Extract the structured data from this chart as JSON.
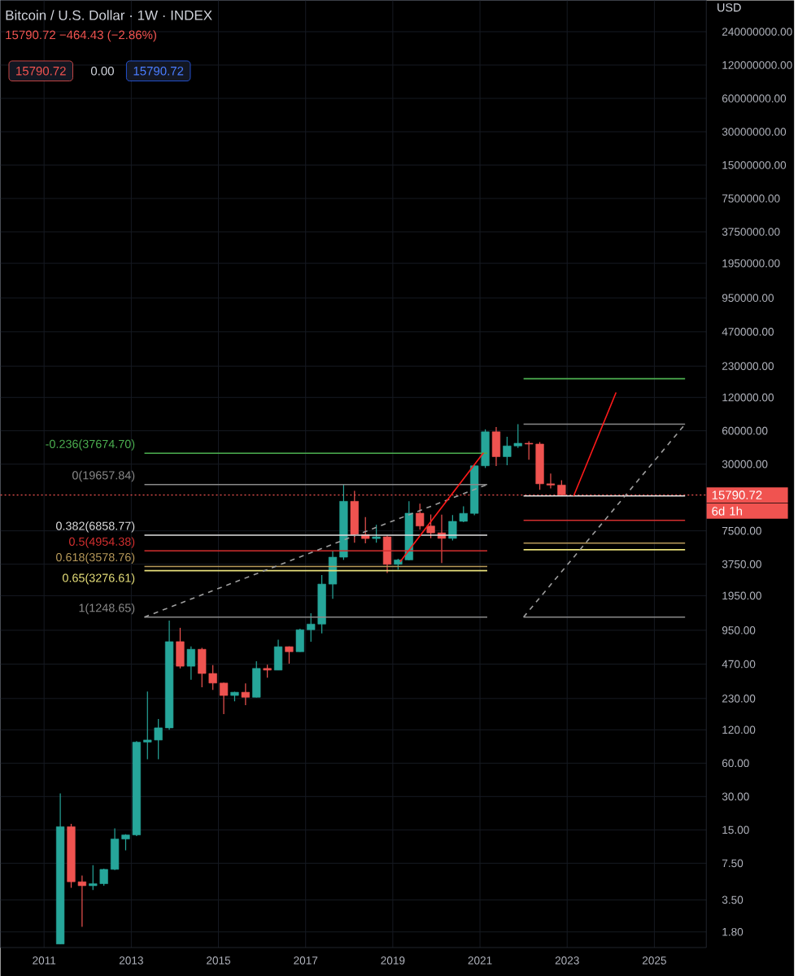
{
  "chart_data": {
    "type": "candlestick",
    "title": "Bitcoin / U.S. Dollar · 1W · INDEX",
    "subtitle": "15790.72 −464.43 (−2.86%)",
    "ylabel": "USD",
    "annotations": [
      "15790.72",
      "0.00",
      "15790.72",
      "6d 1h"
    ],
    "log": "y",
    "grid": true,
    "xlim": [
      "2010-01-01",
      "2026-03-10"
    ],
    "xticks": [
      {
        "value": "2011-01-01",
        "label": "2011"
      },
      {
        "value": "2013-01-01",
        "label": "2013"
      },
      {
        "value": "2015-01-01",
        "label": "2015"
      },
      {
        "value": "2017-01-01",
        "label": "2017"
      },
      {
        "value": "2019-01-01",
        "label": "2019"
      },
      {
        "value": "2021-01-01",
        "label": "2021"
      },
      {
        "value": "2023-01-01",
        "label": "2023"
      },
      {
        "value": "2025-01-01",
        "label": "2025"
      }
    ],
    "ylim": [
      1.3,
      460000000
    ],
    "yticks": [
      {
        "value": 1.8,
        "label": "1.80"
      },
      {
        "value": 3.5,
        "label": "3.50"
      },
      {
        "value": 7.5,
        "label": "7.50"
      },
      {
        "value": 15,
        "label": "15.00"
      },
      {
        "value": 30,
        "label": "30.00"
      },
      {
        "value": 60,
        "label": "60.00"
      },
      {
        "value": 120,
        "label": "120.00"
      },
      {
        "value": 230,
        "label": "230.00"
      },
      {
        "value": 470,
        "label": "470.00"
      },
      {
        "value": 950,
        "label": "950.00"
      },
      {
        "value": 1950,
        "label": "1950.00"
      },
      {
        "value": 3750,
        "label": "3750.00"
      },
      {
        "value": 7500,
        "label": "7500.00"
      },
      {
        "value": 30000,
        "label": "30000.00"
      },
      {
        "value": 60000,
        "label": "60000.00"
      },
      {
        "value": 120000,
        "label": "120000.00"
      },
      {
        "value": 230000,
        "label": "230000.00"
      },
      {
        "value": 470000,
        "label": "470000.00"
      },
      {
        "value": 950000,
        "label": "950000.00"
      },
      {
        "value": 1950000,
        "label": "1950000.00"
      },
      {
        "value": 3750000,
        "label": "3750000.00"
      },
      {
        "value": 7500000,
        "label": "7500000.00"
      },
      {
        "value": 15000000,
        "label": "15000000.00"
      },
      {
        "value": 30000000,
        "label": "30000000.00"
      },
      {
        "value": 60000000,
        "label": "60000000.00"
      },
      {
        "value": 120000000,
        "label": "120000000.00"
      },
      {
        "value": 240000000,
        "label": "240000000.00"
      }
    ],
    "ref_lines": [
      {
        "axis": "y",
        "value": 15790.72,
        "label": "15790.72",
        "color": "#f05350",
        "line_style": "dotted"
      }
    ],
    "x": [
      "2011-05-15",
      "2011-08-15",
      "2011-11-15",
      "2012-02-15",
      "2012-05-15",
      "2012-08-15",
      "2012-11-15",
      "2013-02-15",
      "2013-05-15",
      "2013-08-15",
      "2013-11-15",
      "2014-02-15",
      "2014-05-15",
      "2014-08-15",
      "2014-11-15",
      "2015-02-15",
      "2015-05-15",
      "2015-08-15",
      "2015-11-15",
      "2016-02-15",
      "2016-05-15",
      "2016-08-15",
      "2016-11-15",
      "2017-02-15",
      "2017-05-15",
      "2017-08-15",
      "2017-11-15",
      "2018-02-15",
      "2018-05-15",
      "2018-08-15",
      "2018-11-15",
      "2019-02-15",
      "2019-05-15",
      "2019-08-15",
      "2019-11-15",
      "2020-02-15",
      "2020-05-15",
      "2020-08-15",
      "2020-11-15",
      "2021-02-15",
      "2021-05-15",
      "2021-08-15",
      "2021-11-15",
      "2022-02-15",
      "2022-05-15",
      "2022-08-15",
      "2022-11-15"
    ],
    "ohlc": [
      [
        1.4,
        32,
        1.4,
        16
      ],
      [
        16,
        17,
        4.5,
        5.1
      ],
      [
        5.1,
        5.8,
        2.0,
        4.7
      ],
      [
        4.7,
        7.2,
        4.3,
        4.9
      ],
      [
        4.9,
        6.7,
        4.7,
        6.6
      ],
      [
        6.6,
        15.5,
        6.5,
        12.4
      ],
      [
        12.4,
        13.7,
        9.8,
        13.5
      ],
      [
        13.5,
        95,
        13.2,
        93
      ],
      [
        93,
        266,
        65,
        97
      ],
      [
        97,
        150,
        65,
        125
      ],
      [
        125,
        1160,
        120,
        750
      ],
      [
        750,
        1000,
        430,
        450
      ],
      [
        450,
        680,
        340,
        640
      ],
      [
        640,
        660,
        290,
        387
      ],
      [
        387,
        460,
        275,
        317
      ],
      [
        317,
        320,
        166,
        245
      ],
      [
        245,
        265,
        217,
        262
      ],
      [
        262,
        315,
        200,
        236
      ],
      [
        236,
        500,
        235,
        430
      ],
      [
        430,
        465,
        355,
        415
      ],
      [
        415,
        780,
        415,
        675
      ],
      [
        675,
        680,
        475,
        608
      ],
      [
        608,
        980,
        605,
        960
      ],
      [
        960,
        1350,
        750,
        1080
      ],
      [
        1080,
        3000,
        890,
        2480
      ],
      [
        2480,
        4950,
        1830,
        4340
      ],
      [
        4340,
        19670,
        4100,
        13860
      ],
      [
        13860,
        17250,
        5870,
        6930
      ],
      [
        6930,
        9990,
        5780,
        6390
      ],
      [
        6390,
        8500,
        5860,
        6620
      ],
      [
        6620,
        6790,
        3120,
        3740
      ],
      [
        3740,
        4200,
        3350,
        4100
      ],
      [
        4100,
        13880,
        4060,
        10820
      ],
      [
        10820,
        13200,
        7700,
        8290
      ],
      [
        8290,
        10540,
        6430,
        7190
      ],
      [
        7190,
        10500,
        3850,
        6410
      ],
      [
        6410,
        10430,
        6150,
        9140
      ],
      [
        9140,
        12480,
        9000,
        10780
      ],
      [
        10780,
        29300,
        10370,
        28990
      ],
      [
        28990,
        61780,
        27700,
        58790
      ],
      [
        58790,
        64900,
        28800,
        35040
      ],
      [
        35040,
        52940,
        29280,
        43790
      ],
      [
        43790,
        69000,
        41950,
        46300
      ],
      [
        46300,
        48240,
        32930,
        45540
      ],
      [
        45540,
        47440,
        17600,
        19930
      ],
      [
        19930,
        24670,
        18150,
        19430
      ],
      [
        19430,
        21480,
        15480,
        15790.72
      ]
    ],
    "colors": [
      "#26a69a",
      "#ef5350",
      "#ef5350",
      "#26a69a",
      "#26a69a",
      "#26a69a",
      "#26a69a",
      "#26a69a",
      "#26a69a",
      "#26a69a",
      "#26a69a",
      "#ef5350",
      "#26a69a",
      "#ef5350",
      "#ef5350",
      "#ef5350",
      "#26a69a",
      "#ef5350",
      "#26a69a",
      "#ef5350",
      "#26a69a",
      "#ef5350",
      "#26a69a",
      "#26a69a",
      "#26a69a",
      "#26a69a",
      "#26a69a",
      "#ef5350",
      "#ef5350",
      "#26a69a",
      "#ef5350",
      "#26a69a",
      "#26a69a",
      "#ef5350",
      "#ef5350",
      "#ef5350",
      "#26a69a",
      "#26a69a",
      "#26a69a",
      "#26a69a",
      "#ef5350",
      "#26a69a",
      "#26a69a",
      "#ef5350",
      "#ef5350",
      "#ef5350",
      "#ef5350"
    ],
    "series": [
      {
        "type": "line",
        "name": "-0.236(37674.70)",
        "color": "#4caf50",
        "x": [
          "2013-04-20",
          "2021-03-01"
        ],
        "values": [
          37674.7,
          37674.7
        ]
      },
      {
        "type": "line",
        "name": "0(19657.84)",
        "color": "#8a8a8a",
        "x": [
          "2013-04-20",
          "2021-03-01"
        ],
        "values": [
          19657.84,
          19657.84
        ]
      },
      {
        "type": "line",
        "name": "0.382(6858.77)",
        "color": "#e0e0e0",
        "x": [
          "2013-04-20",
          "2021-03-01"
        ],
        "values": [
          6858.77,
          6858.77
        ]
      },
      {
        "type": "line",
        "name": "0.5(4954.38)",
        "color": "#d32f2f",
        "x": [
          "2013-04-20",
          "2021-03-01"
        ],
        "values": [
          4954.38,
          4954.38
        ]
      },
      {
        "type": "line",
        "name": "0.618(3578.76)",
        "color": "#b89a5a",
        "x": [
          "2013-04-20",
          "2021-03-01"
        ],
        "values": [
          3578.76,
          3578.76
        ]
      },
      {
        "type": "line",
        "name": "0.65(3276.61)",
        "color": "#e8e07a",
        "x": [
          "2013-04-20",
          "2021-03-01"
        ],
        "values": [
          3276.61,
          3276.61
        ]
      },
      {
        "type": "line",
        "name": "1(1248.65)",
        "color": "#8a8a8a",
        "x": [
          "2013-04-20",
          "2021-03-01"
        ],
        "values": [
          1248.65,
          1248.65
        ]
      },
      {
        "type": "line",
        "color": "#9e9e9e",
        "line_style": "dashed",
        "x": [
          "2013-04-20",
          "2021-03-01"
        ],
        "values": [
          1248.65,
          19657.84
        ]
      },
      {
        "type": "line",
        "color": "#4caf50",
        "x": [
          "2022-01-01",
          "2025-09-15"
        ],
        "values": [
          177000,
          177000
        ]
      },
      {
        "type": "line",
        "color": "#8a8a8a",
        "x": [
          "2022-01-01",
          "2025-09-15"
        ],
        "values": [
          68800,
          68800
        ]
      },
      {
        "type": "line",
        "color": "#e0e0e0",
        "x": [
          "2022-01-01",
          "2025-09-15"
        ],
        "values": [
          15480,
          15480
        ]
      },
      {
        "type": "line",
        "color": "#d32f2f",
        "x": [
          "2022-01-01",
          "2025-09-15"
        ],
        "values": [
          9330,
          9330
        ]
      },
      {
        "type": "line",
        "color": "#b89a5a",
        "x": [
          "2022-01-01",
          "2025-09-15"
        ],
        "values": [
          5810,
          5810
        ]
      },
      {
        "type": "line",
        "color": "#e8e07a",
        "x": [
          "2022-01-01",
          "2025-09-15"
        ],
        "values": [
          5070,
          5070
        ]
      },
      {
        "type": "line",
        "color": "#8a8a8a",
        "x": [
          "2022-01-01",
          "2025-09-15"
        ],
        "values": [
          1248.65,
          1248.65
        ]
      },
      {
        "type": "line",
        "color": "#9e9e9e",
        "line_style": "dashed",
        "x": [
          "2022-01-01",
          "2025-09-15"
        ],
        "values": [
          1248.65,
          68800
        ]
      },
      {
        "type": "line",
        "color": "#ff1a1a",
        "x": [
          "2019-03-01",
          "2021-01-30"
        ],
        "values": [
          3940,
          38000
        ]
      },
      {
        "type": "line",
        "color": "#ff1a1a",
        "x": [
          "2023-02-25",
          "2024-02-15"
        ],
        "values": [
          15500,
          133000
        ]
      }
    ]
  }
}
